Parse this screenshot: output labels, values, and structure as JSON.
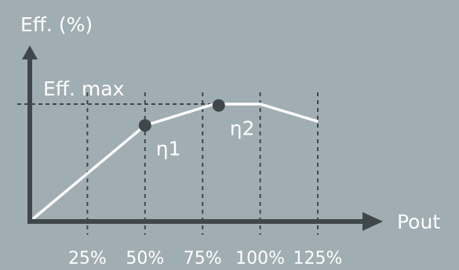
{
  "chart_data": {
    "type": "line",
    "ylabel": "Eff. (%)",
    "xlabel": "Pout",
    "x_ticks": [
      "25%",
      "50%",
      "75%",
      "100%",
      "125%"
    ],
    "x_tick_values": [
      25,
      50,
      75,
      100,
      125
    ],
    "xlim": [
      0,
      140
    ],
    "ylim": [
      0,
      100
    ],
    "max_label": "Eff. max",
    "max_value": 88,
    "series": [
      {
        "x": [
          0,
          50,
          80,
          100,
          125
        ],
        "y": [
          0,
          72,
          88,
          88,
          75
        ]
      }
    ],
    "points": [
      {
        "label": "η1",
        "x": 50,
        "y": 72
      },
      {
        "label": "η2",
        "x": 82,
        "y": 87
      }
    ],
    "grid": "vertical-dashed",
    "colors": {
      "background": "#a0adb2",
      "axis": "#3f474b",
      "grid": "#3f474b",
      "line": "#ffffff",
      "marker": "#3f474b",
      "text": "#ffffff"
    }
  }
}
